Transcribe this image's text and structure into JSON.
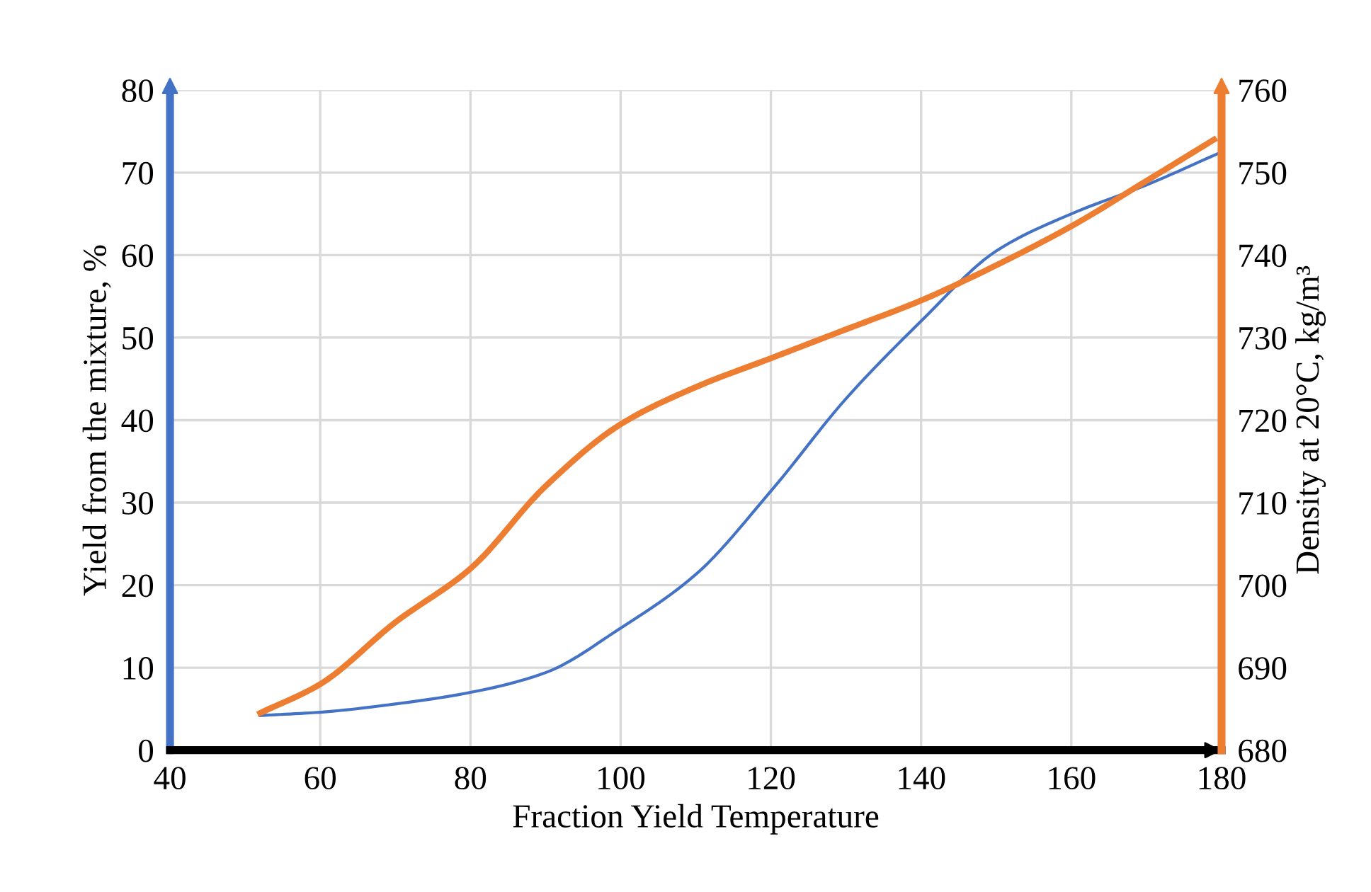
{
  "chart_data": {
    "type": "line",
    "xlabel": "Fraction Yield Temperature",
    "ylabel": "Yield from the mixture, %",
    "y2label": "Density at 20°C, kg/m³",
    "xlim": [
      40,
      180
    ],
    "xticks": [
      40,
      60,
      80,
      100,
      120,
      140,
      160,
      180
    ],
    "ylim": [
      0,
      80
    ],
    "yticks": [
      0,
      10,
      20,
      30,
      40,
      50,
      60,
      70,
      80
    ],
    "y2lim": [
      680,
      760
    ],
    "y2ticks": [
      680,
      690,
      700,
      710,
      720,
      730,
      740,
      750,
      760
    ],
    "grid": true,
    "legend": false,
    "marker": "none",
    "line_style": "solid",
    "series": [
      {
        "color": "#4472c4",
        "x": [
          52,
          60,
          70,
          80,
          90,
          100,
          110,
          120,
          130,
          140,
          150,
          160,
          170,
          180
        ],
        "values": [
          4.2,
          4.6,
          5.6,
          7.0,
          9.4,
          14.8,
          21.3,
          31.4,
          42.6,
          52,
          60.5,
          65,
          68.5,
          72.5
        ]
      },
      {
        "color": "#ed7d31",
        "axis": "y2",
        "x": [
          52,
          60,
          70,
          80,
          90,
          100,
          110,
          120,
          130,
          140,
          146,
          160,
          170,
          179
        ],
        "values": [
          684.5,
          688,
          695.5,
          702,
          712,
          719.5,
          724,
          727.5,
          731,
          734.5,
          737,
          743.5,
          749,
          754
        ]
      }
    ]
  }
}
